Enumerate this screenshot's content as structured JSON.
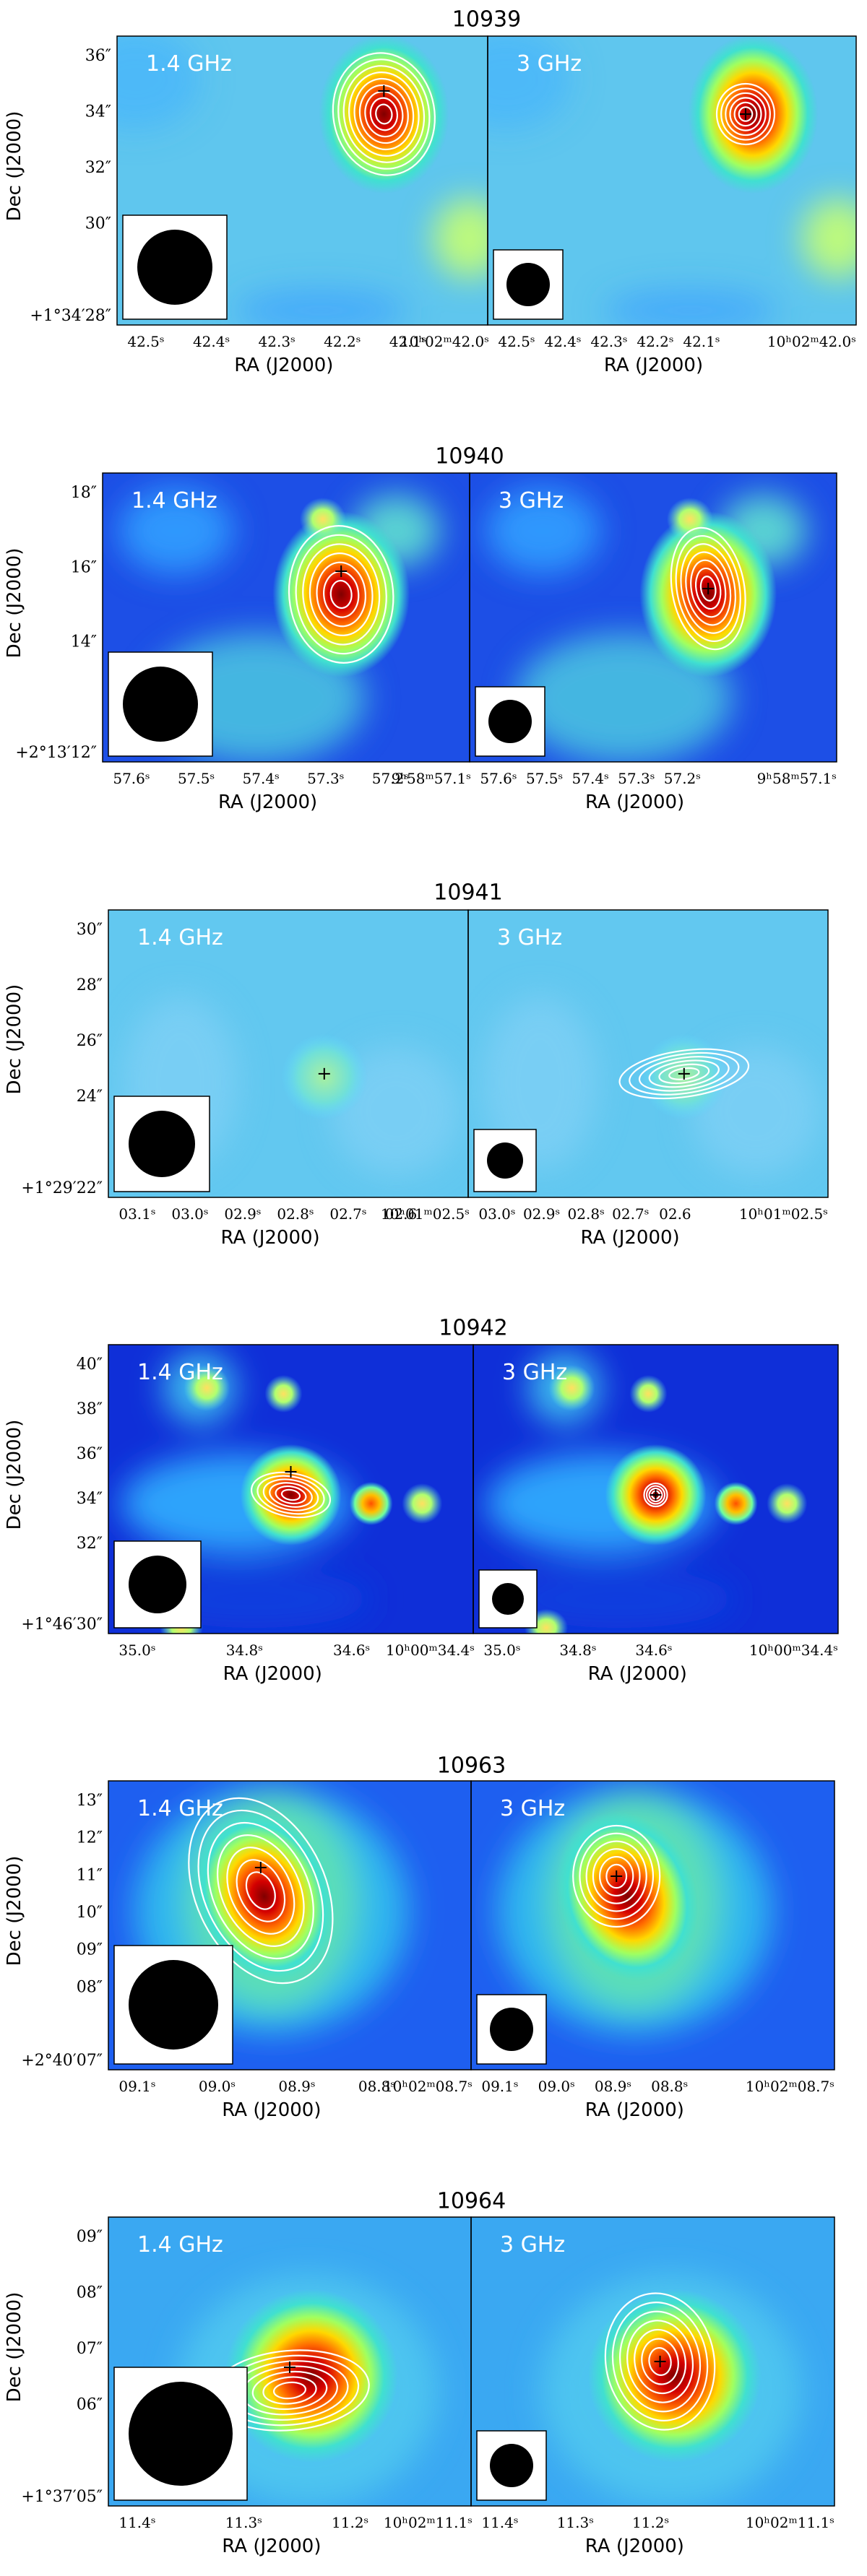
{
  "figure": {
    "x_axis_label": "RA (J2000)",
    "y_axis_label": "Dec (J2000)",
    "background_colormap": "jet",
    "contour_color": "#ffffff",
    "beam_color": "#000000",
    "marker_color": "#000000",
    "panels": [
      {
        "id": "10939",
        "title": "10939",
        "left_label": "1.4 GHz",
        "right_label": "3 GHz",
        "y_ticks": [
          "36″",
          "34″",
          "32″",
          "30″"
        ],
        "y_origin": "+1°34′28″",
        "x_ticks_left": [
          "42.5ˢ",
          "42.4ˢ",
          "42.3ˢ",
          "42.2ˢ",
          "42.1ˢ"
        ],
        "x_ticks_right": [
          "10ʰ02ᵐ42.0ˢ",
          "42.5ˢ",
          "42.4ˢ",
          "42.3ˢ",
          "42.2ˢ",
          "42.1ˢ",
          "10ʰ02ᵐ42.0ˢ"
        ]
      },
      {
        "id": "10940",
        "title": "10940",
        "left_label": "1.4 GHz",
        "right_label": "3 GHz",
        "y_ticks": [
          "18″",
          "16″",
          "14″"
        ],
        "y_origin": "+2°13′12″",
        "x_ticks_left": [
          "57.6ˢ",
          "57.5ˢ",
          "57.4ˢ",
          "57.3ˢ",
          "57.2ˢ"
        ],
        "x_ticks_right": [
          "9ʰ58ᵐ57.1ˢ",
          "57.6ˢ",
          "57.5ˢ",
          "57.4ˢ",
          "57.3ˢ",
          "57.2ˢ",
          "9ʰ58ᵐ57.1ˢ"
        ]
      },
      {
        "id": "10941",
        "title": "10941",
        "left_label": "1.4 GHz",
        "right_label": "3 GHz",
        "y_ticks": [
          "30″",
          "28″",
          "26″",
          "24″"
        ],
        "y_origin": "+1°29′22″",
        "x_ticks_left": [
          "03.1ˢ",
          "03.0ˢ",
          "02.9ˢ",
          "02.8ˢ",
          "02.7ˢ",
          "02.6"
        ],
        "x_ticks_right": [
          "10ʰ01ᵐ02.5ˢ",
          "03.0ˢ",
          "02.9ˢ",
          "02.8ˢ",
          "02.7ˢ",
          "02.6",
          "10ʰ01ᵐ02.5ˢ"
        ]
      },
      {
        "id": "10942",
        "title": "10942",
        "left_label": "1.4 GHz",
        "right_label": "3 GHz",
        "y_ticks": [
          "40″",
          "38″",
          "36″",
          "34″",
          "32″"
        ],
        "y_origin": "+1°46′30″",
        "x_ticks_left": [
          "35.0ˢ",
          "34.8ˢ",
          "34.6ˢ"
        ],
        "x_ticks_right": [
          "10ʰ00ᵐ34.4ˢ",
          "35.0ˢ",
          "34.8ˢ",
          "34.6ˢ",
          "10ʰ00ᵐ34.4ˢ"
        ]
      },
      {
        "id": "10963",
        "title": "10963",
        "left_label": "1.4 GHz",
        "right_label": "3 GHz",
        "y_ticks": [
          "13″",
          "12″",
          "11″",
          "10″",
          "09″",
          "08″"
        ],
        "y_origin": "+2°40′07″",
        "x_ticks_left": [
          "09.1ˢ",
          "09.0ˢ",
          "08.9ˢ",
          "08.8ˢ"
        ],
        "x_ticks_right": [
          "10ʰ02ᵐ08.7ˢ",
          "09.1ˢ",
          "09.0ˢ",
          "08.9ˢ",
          "08.8ˢ",
          "10ʰ02ᵐ08.7ˢ"
        ]
      },
      {
        "id": "10964",
        "title": "10964",
        "left_label": "1.4 GHz",
        "right_label": "3 GHz",
        "y_ticks": [
          "09″",
          "08″",
          "07″",
          "06″"
        ],
        "y_origin": "+1°37′05″",
        "x_ticks_left": [
          "11.4ˢ",
          "11.3ˢ",
          "11.2ˢ"
        ],
        "x_ticks_right": [
          "10ʰ02ᵐ11.1ˢ",
          "11.4ˢ",
          "11.3ˢ",
          "11.2ˢ",
          "10ʰ02ᵐ11.1ˢ"
        ]
      }
    ]
  }
}
